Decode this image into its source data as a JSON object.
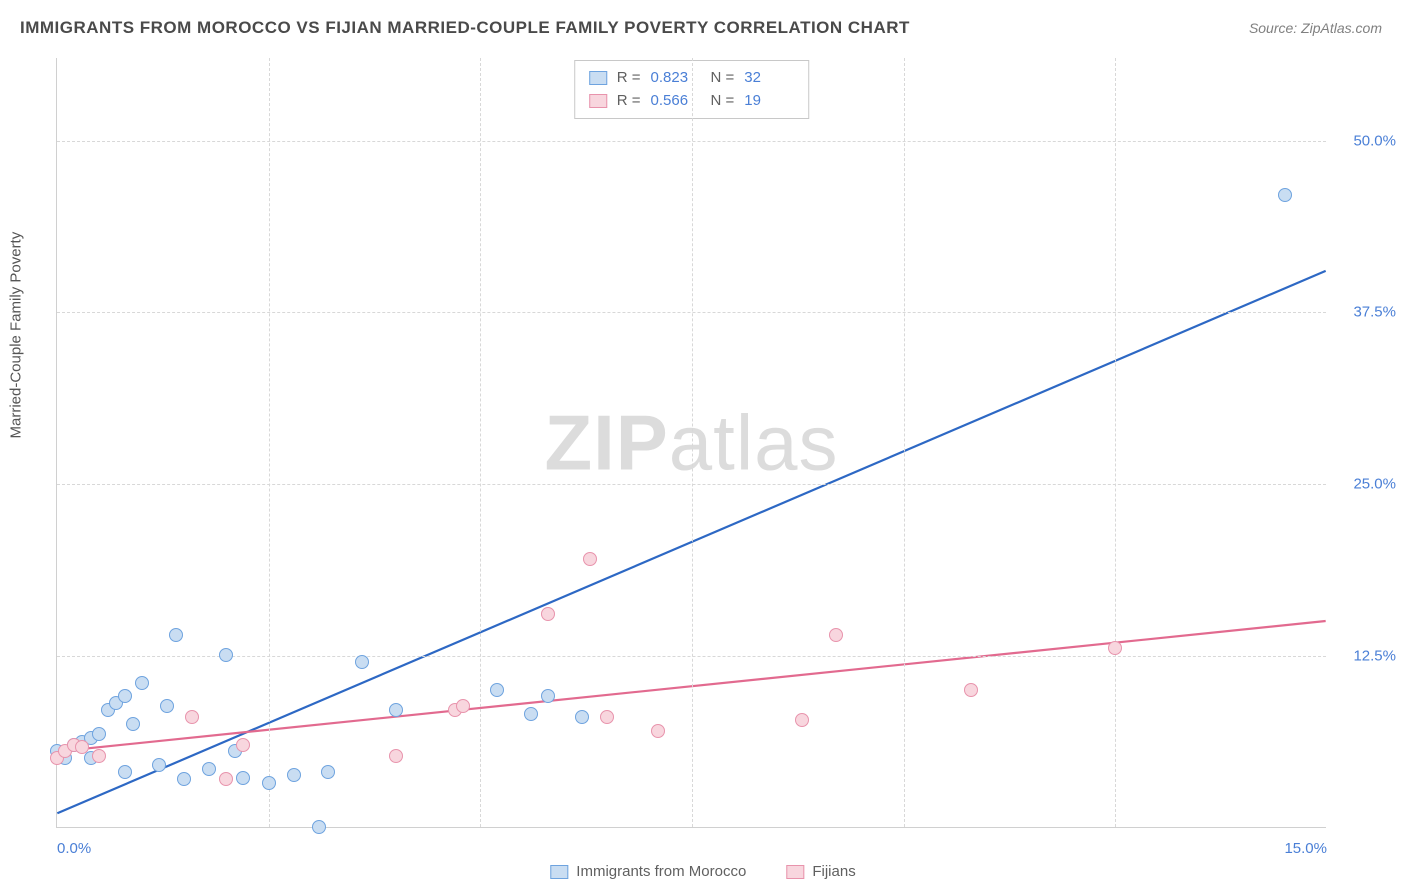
{
  "title": "IMMIGRANTS FROM MOROCCO VS FIJIAN MARRIED-COUPLE FAMILY POVERTY CORRELATION CHART",
  "source": "Source: ZipAtlas.com",
  "ylabel": "Married-Couple Family Poverty",
  "watermark_bold": "ZIP",
  "watermark_rest": "atlas",
  "chart": {
    "type": "scatter",
    "background_color": "#ffffff",
    "grid_color": "#d8d8d8",
    "xlim": [
      0.0,
      15.0
    ],
    "ylim": [
      0.0,
      56.0
    ],
    "xticks": [
      {
        "v": 0.0,
        "label": "0.0%",
        "show_label": true
      },
      {
        "v": 2.5,
        "label": "",
        "show_label": false
      },
      {
        "v": 5.0,
        "label": "",
        "show_label": false
      },
      {
        "v": 7.5,
        "label": "",
        "show_label": false
      },
      {
        "v": 10.0,
        "label": "",
        "show_label": false
      },
      {
        "v": 12.5,
        "label": "",
        "show_label": false
      },
      {
        "v": 15.0,
        "label": "15.0%",
        "show_label": true
      }
    ],
    "yticks": [
      {
        "v": 12.5,
        "label": "12.5%"
      },
      {
        "v": 25.0,
        "label": "25.0%"
      },
      {
        "v": 37.5,
        "label": "37.5%"
      },
      {
        "v": 50.0,
        "label": "50.0%"
      }
    ],
    "series": [
      {
        "name": "Immigrants from Morocco",
        "fill": "#c9ddf2",
        "stroke": "#6ea3df",
        "line_color": "#2d68c4",
        "line_width": 2.2,
        "marker_size": 14,
        "r_label": "R =",
        "r_value": "0.823",
        "n_label": "N =",
        "n_value": "32",
        "trend": {
          "x1": 0.0,
          "y1": 1.0,
          "x2": 15.0,
          "y2": 40.5
        },
        "points": [
          [
            0.0,
            5.5
          ],
          [
            0.1,
            5.0
          ],
          [
            0.2,
            6.0
          ],
          [
            0.3,
            6.2
          ],
          [
            0.4,
            5.0
          ],
          [
            0.4,
            6.5
          ],
          [
            0.5,
            6.8
          ],
          [
            0.6,
            8.5
          ],
          [
            0.7,
            9.0
          ],
          [
            0.8,
            4.0
          ],
          [
            0.8,
            9.5
          ],
          [
            0.9,
            7.5
          ],
          [
            1.0,
            10.5
          ],
          [
            1.2,
            4.5
          ],
          [
            1.3,
            8.8
          ],
          [
            1.4,
            14.0
          ],
          [
            1.5,
            3.5
          ],
          [
            1.8,
            4.2
          ],
          [
            2.0,
            12.5
          ],
          [
            2.1,
            5.5
          ],
          [
            2.2,
            3.6
          ],
          [
            2.5,
            3.2
          ],
          [
            2.8,
            3.8
          ],
          [
            3.1,
            0.0
          ],
          [
            3.2,
            4.0
          ],
          [
            3.6,
            12.0
          ],
          [
            4.0,
            8.5
          ],
          [
            5.2,
            10.0
          ],
          [
            5.6,
            8.2
          ],
          [
            5.8,
            9.5
          ],
          [
            6.2,
            8.0
          ],
          [
            14.5,
            46.0
          ]
        ]
      },
      {
        "name": "Fijians",
        "fill": "#f8d6de",
        "stroke": "#e893ac",
        "line_color": "#e26a8f",
        "line_width": 2.2,
        "marker_size": 14,
        "r_label": "R =",
        "r_value": "0.566",
        "n_label": "N =",
        "n_value": "19",
        "trend": {
          "x1": 0.0,
          "y1": 5.5,
          "x2": 15.0,
          "y2": 15.0
        },
        "points": [
          [
            0.0,
            5.0
          ],
          [
            0.1,
            5.5
          ],
          [
            0.2,
            6.0
          ],
          [
            0.3,
            5.8
          ],
          [
            0.5,
            5.2
          ],
          [
            1.6,
            8.0
          ],
          [
            2.0,
            3.5
          ],
          [
            2.2,
            6.0
          ],
          [
            4.0,
            5.2
          ],
          [
            4.7,
            8.5
          ],
          [
            4.8,
            8.8
          ],
          [
            5.8,
            15.5
          ],
          [
            6.3,
            19.5
          ],
          [
            6.5,
            8.0
          ],
          [
            7.1,
            7.0
          ],
          [
            8.8,
            7.8
          ],
          [
            9.2,
            14.0
          ],
          [
            10.8,
            10.0
          ],
          [
            12.5,
            13.0
          ]
        ]
      }
    ]
  }
}
